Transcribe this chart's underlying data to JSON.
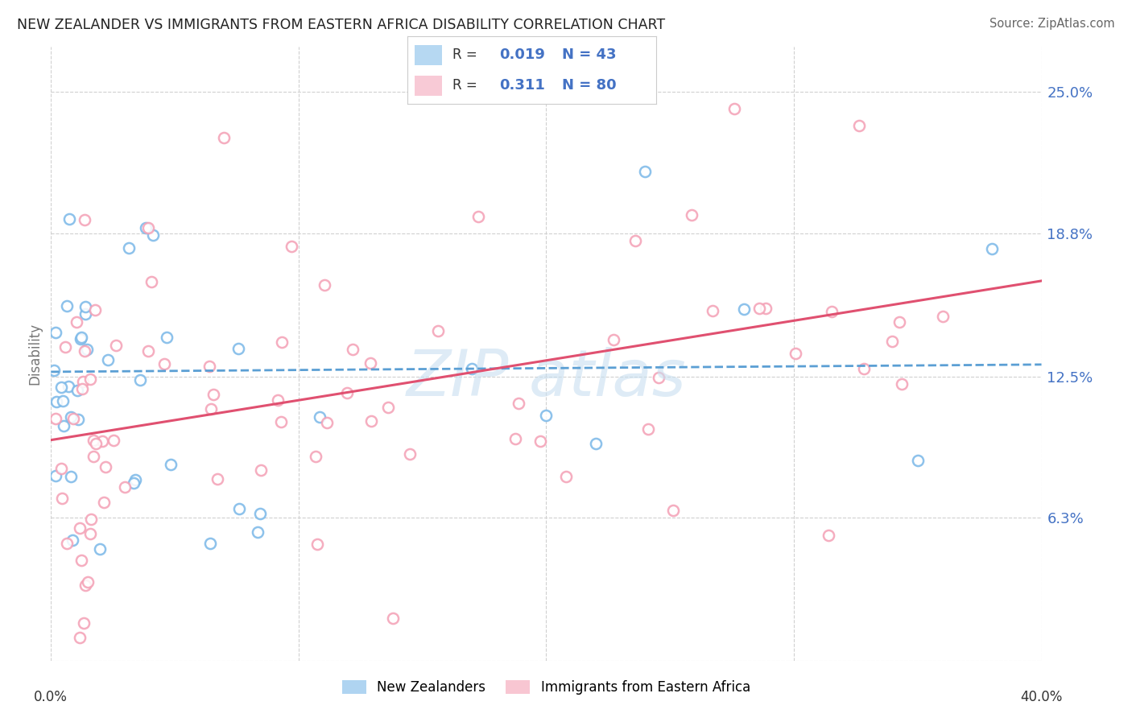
{
  "title": "NEW ZEALANDER VS IMMIGRANTS FROM EASTERN AFRICA DISABILITY CORRELATION CHART",
  "source": "Source: ZipAtlas.com",
  "ylabel": "Disability",
  "xmin": 0.0,
  "xmax": 0.4,
  "ymin": 0.0,
  "ymax": 0.27,
  "nz_R": 0.019,
  "nz_N": 43,
  "ea_R": 0.311,
  "ea_N": 80,
  "nz_color": "#7ab8e8",
  "ea_color": "#f4a0b5",
  "nz_line_color": "#5b9fd4",
  "ea_line_color": "#e05070",
  "background_color": "#ffffff",
  "grid_color": "#d0d0d0",
  "title_color": "#333333",
  "axis_label_color": "#4472c4",
  "ytick_vals": [
    0.063,
    0.125,
    0.188,
    0.25
  ],
  "ytick_labels": [
    "6.3%",
    "12.5%",
    "18.8%",
    "25.0%"
  ],
  "nz_line_intercept": 0.127,
  "nz_line_slope": 0.008,
  "ea_line_intercept": 0.097,
  "ea_line_slope": 0.175
}
